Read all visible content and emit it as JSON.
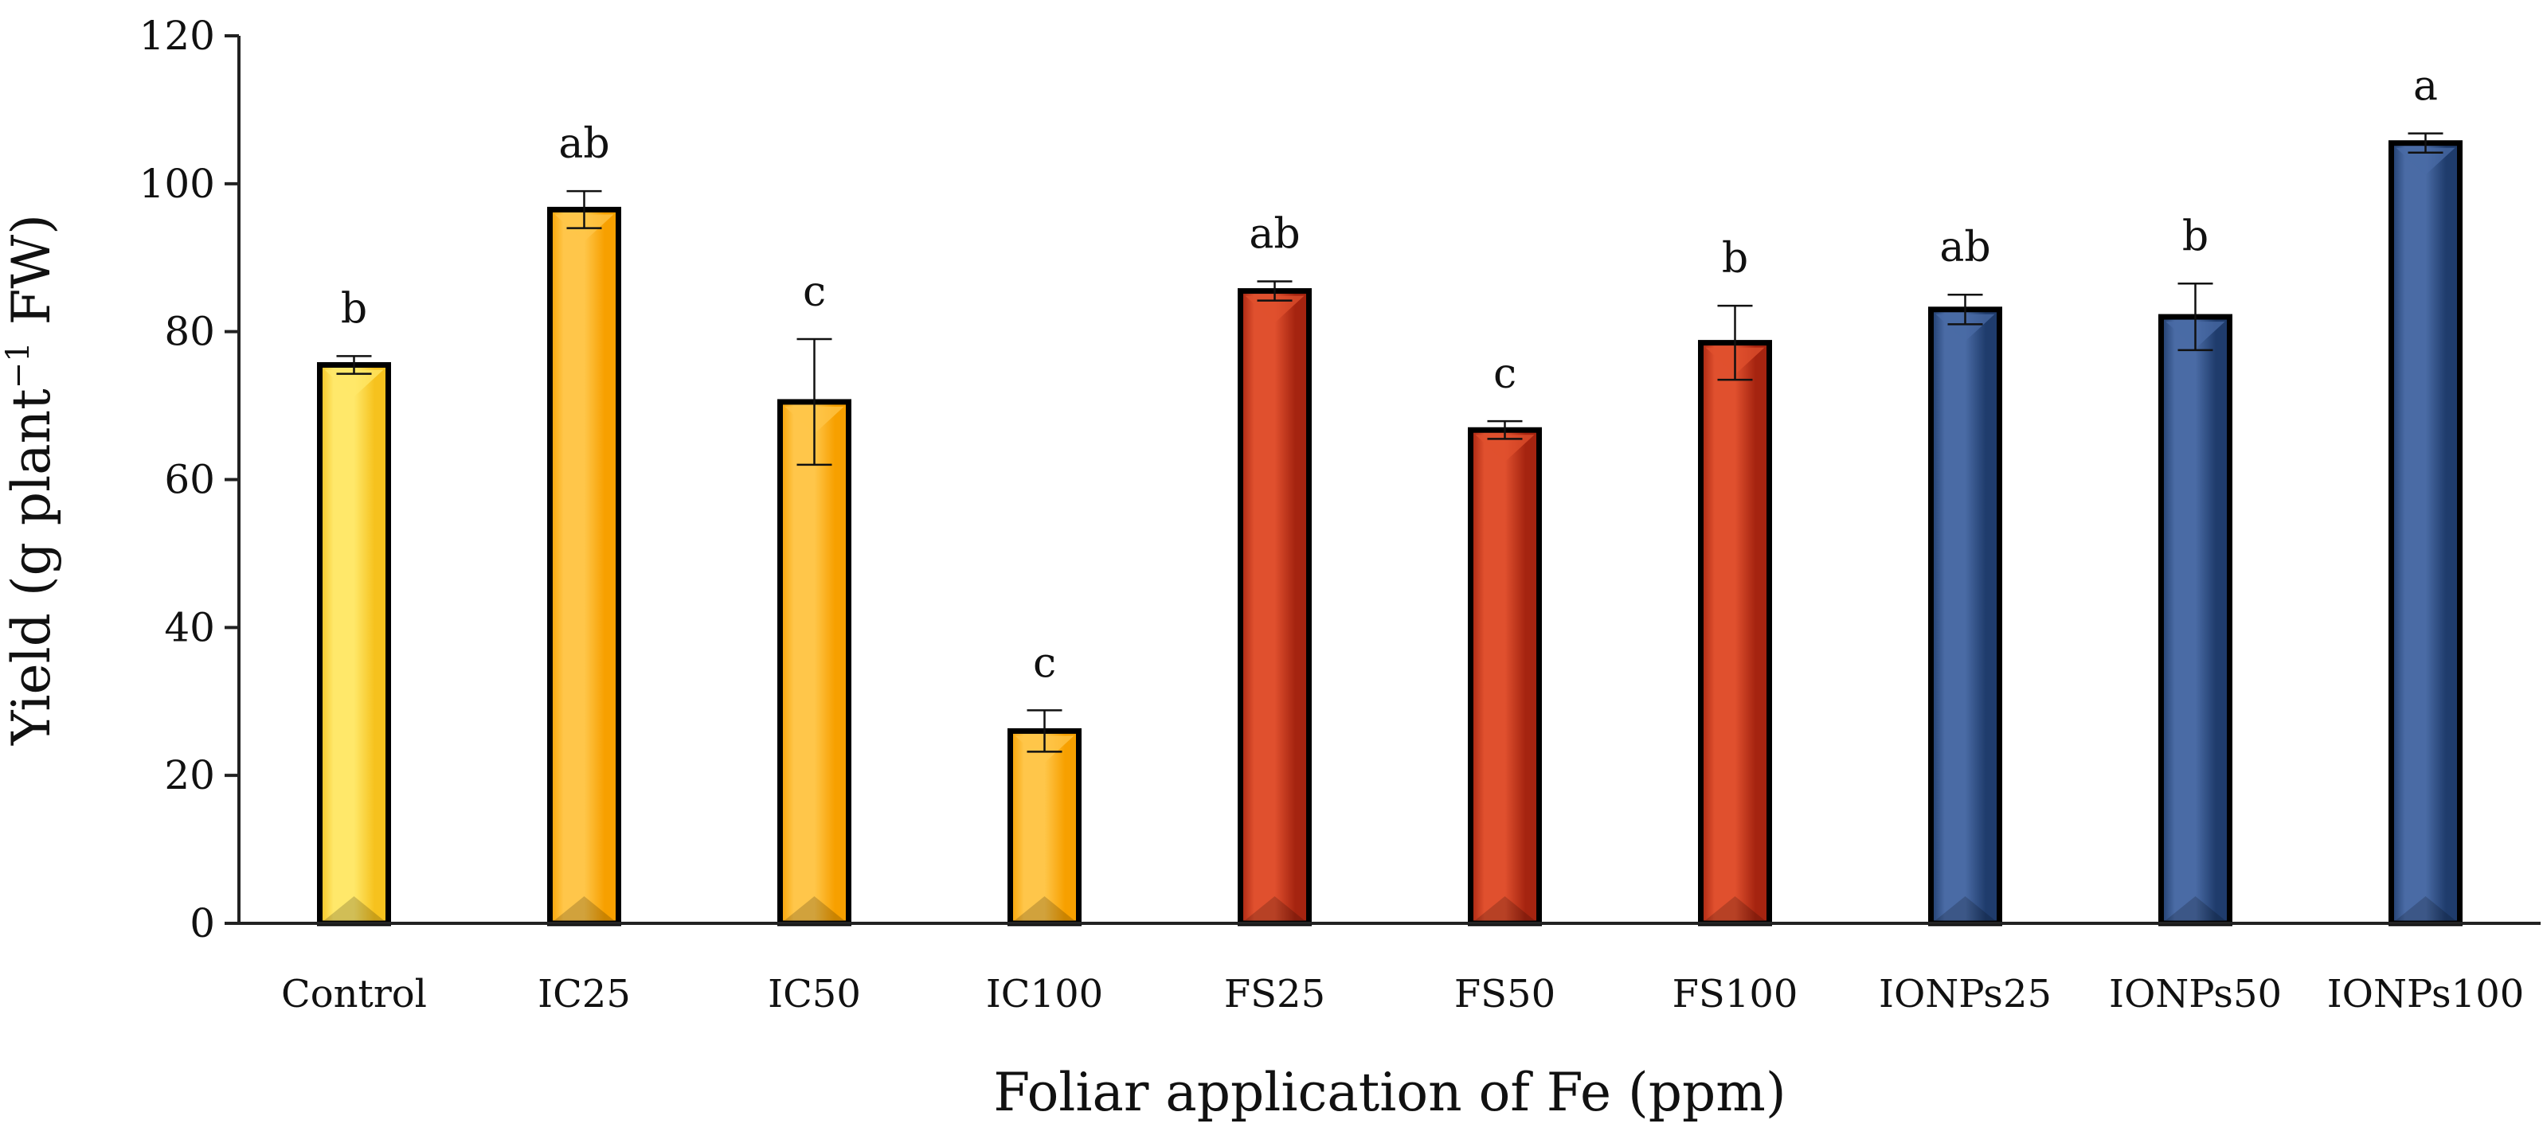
{
  "chart_data": {
    "type": "bar",
    "title": "",
    "xlabel": "Foliar application of Fe (ppm)",
    "ylabel": {
      "prefix": "Yield (g plant",
      "superscript": "−1",
      "suffix": " FW)"
    },
    "ylim": [
      0,
      120
    ],
    "yticks": [
      0,
      20,
      40,
      60,
      80,
      100,
      120
    ],
    "grid": false,
    "legend": "none",
    "categories": [
      "Control",
      "IC25",
      "IC50",
      "IC100",
      "FS25",
      "FS50",
      "FS100",
      "IONPs25",
      "IONPs50",
      "IONPs100"
    ],
    "values": [
      75.5,
      96.5,
      70.5,
      26.0,
      85.5,
      66.7,
      78.5,
      83.0,
      82.0,
      105.5
    ],
    "errors": [
      1.2,
      2.5,
      8.5,
      2.8,
      1.3,
      1.2,
      5.0,
      2.0,
      4.5,
      1.3
    ],
    "significance": [
      "b",
      "ab",
      "c",
      "c",
      "ab",
      "c",
      "b",
      "ab",
      "b",
      "a"
    ],
    "bar_colors": [
      "#F6C21E",
      "#F7A000",
      "#F7A000",
      "#F7A000",
      "#A52410",
      "#A52410",
      "#A52410",
      "#1F3C6C",
      "#1F3C6C",
      "#1F3C6C"
    ],
    "bar_highlight_colors": [
      "#FFE86A",
      "#FFC64A",
      "#FFC64A",
      "#FFC64A",
      "#E0502E",
      "#E0502E",
      "#E0502E",
      "#4A6BA5",
      "#4A6BA5",
      "#4A6BA5"
    ]
  }
}
